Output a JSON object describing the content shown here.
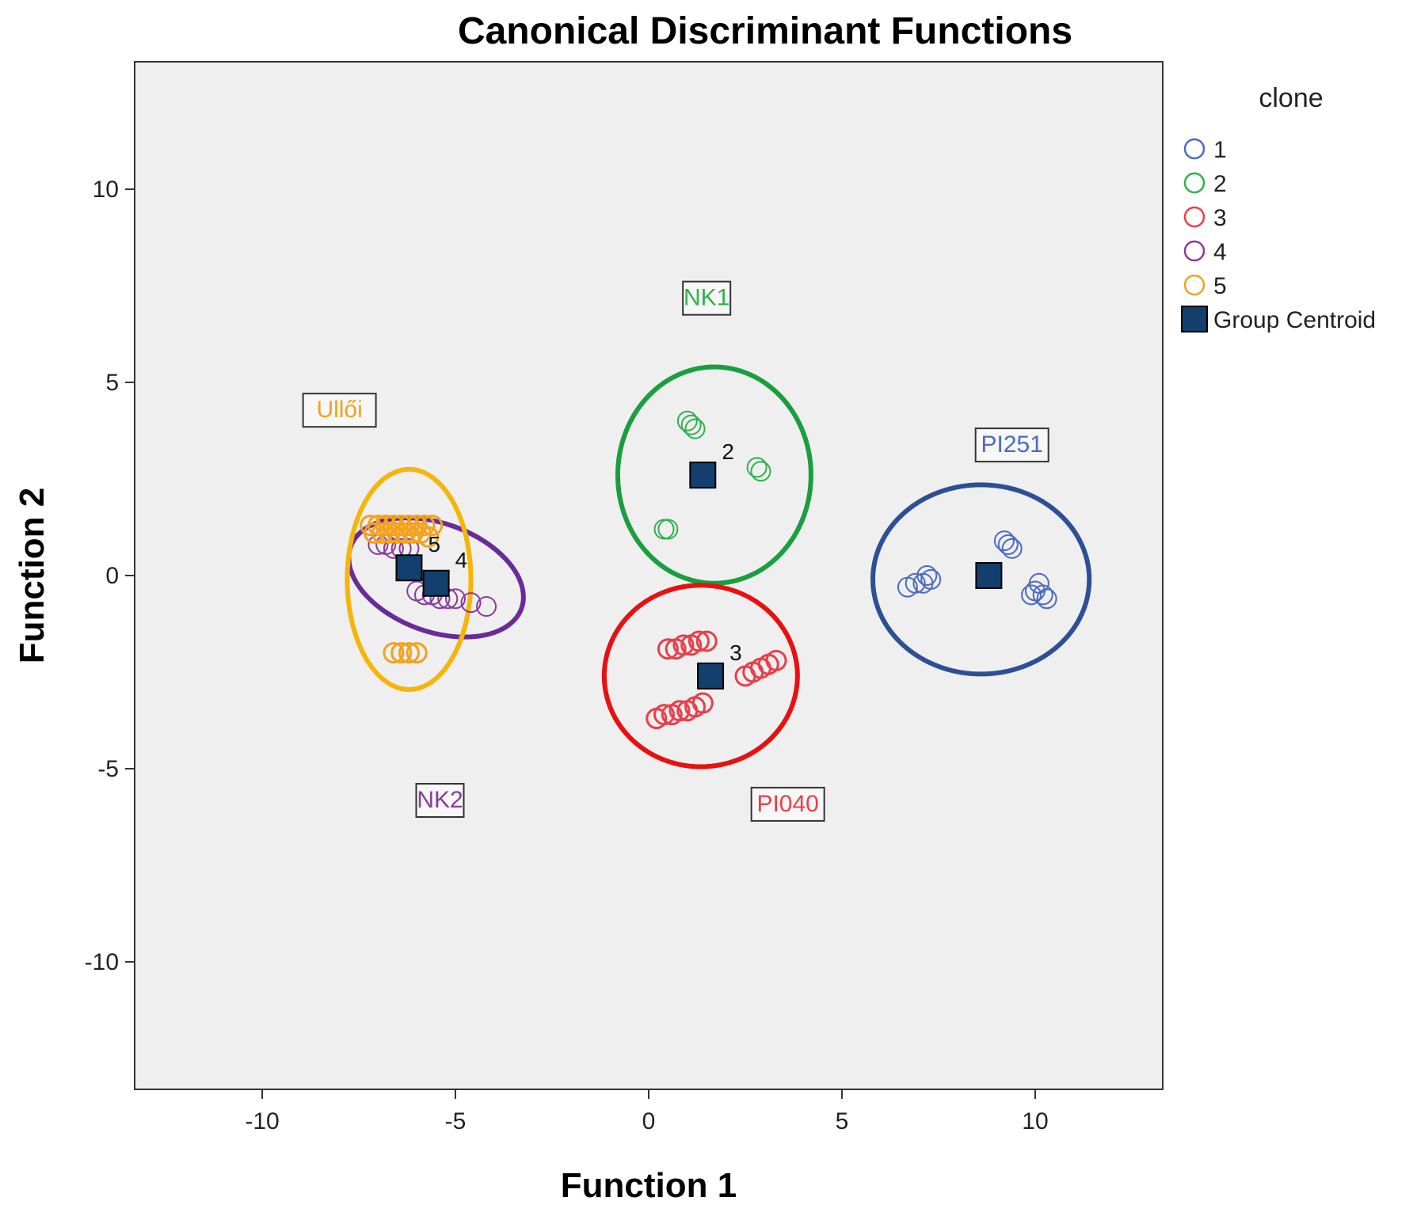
{
  "chart_data": {
    "type": "scatter",
    "title": "Canonical Discriminant Functions",
    "xlabel": "Function 1",
    "ylabel": "Function 2",
    "xlim": [
      -13.3,
      13.3
    ],
    "ylim": [
      -13.3,
      13.3
    ],
    "xticks": [
      -10,
      -5,
      0,
      5,
      10
    ],
    "yticks": [
      10,
      5,
      0,
      -5,
      -10
    ],
    "xtick_labels": [
      "-10",
      "-5",
      "0",
      "5",
      "10"
    ],
    "ytick_labels": [
      "10",
      "5",
      "0",
      "-5",
      "-10"
    ],
    "grid": false,
    "legend": {
      "title": "clone",
      "placement": "right",
      "entries": [
        {
          "label": "1",
          "color": "#4a6cc0",
          "marker": "circle"
        },
        {
          "label": "2",
          "color": "#2db34a",
          "marker": "circle"
        },
        {
          "label": "3",
          "color": "#e8404a",
          "marker": "circle"
        },
        {
          "label": "4",
          "color": "#8a3a9e",
          "marker": "circle"
        },
        {
          "label": "5",
          "color": "#f2a21e",
          "marker": "circle"
        },
        {
          "label": "Group Centroid",
          "color": "#123f6e",
          "marker": "square"
        }
      ]
    },
    "series": [
      {
        "name": "1",
        "color": "#4a6cc0",
        "x": [
          6.7,
          6.9,
          7.1,
          7.3,
          7.2,
          9.2,
          9.3,
          9.4,
          9.9,
          10.0,
          10.1,
          10.2,
          10.3
        ],
        "y": [
          -0.3,
          -0.2,
          -0.2,
          -0.1,
          0.0,
          0.9,
          0.8,
          0.7,
          -0.5,
          -0.4,
          -0.2,
          -0.5,
          -0.6
        ]
      },
      {
        "name": "2",
        "color": "#2db34a",
        "x": [
          1.0,
          1.1,
          1.2,
          2.8,
          2.9,
          0.4,
          0.5
        ],
        "y": [
          4.0,
          3.9,
          3.8,
          2.8,
          2.7,
          1.2,
          1.2
        ]
      },
      {
        "name": "3",
        "color": "#e8404a",
        "x": [
          0.5,
          0.7,
          0.9,
          1.1,
          1.3,
          1.5,
          2.5,
          2.7,
          2.9,
          3.1,
          3.3,
          0.2,
          0.4,
          0.6,
          0.8,
          1.0,
          1.2,
          1.4
        ],
        "y": [
          -1.9,
          -1.9,
          -1.8,
          -1.8,
          -1.7,
          -1.7,
          -2.6,
          -2.5,
          -2.4,
          -2.3,
          -2.2,
          -3.7,
          -3.6,
          -3.6,
          -3.5,
          -3.5,
          -3.4,
          -3.3
        ],
        "line_width": 3
      },
      {
        "name": "4",
        "color": "#8a3a9e",
        "x": [
          -7.0,
          -6.8,
          -6.6,
          -6.4,
          -6.2,
          -6.0,
          -5.8,
          -5.6,
          -5.4,
          -5.2,
          -5.0,
          -4.6,
          -4.2
        ],
        "y": [
          0.8,
          0.8,
          0.7,
          0.7,
          0.7,
          -0.4,
          -0.5,
          -0.5,
          -0.6,
          -0.6,
          -0.6,
          -0.7,
          -0.8
        ]
      },
      {
        "name": "5",
        "color": "#f2a21e",
        "x": [
          -7.2,
          -7.0,
          -6.8,
          -6.6,
          -6.4,
          -6.2,
          -6.0,
          -5.8,
          -5.6,
          -7.1,
          -6.9,
          -6.7,
          -6.5,
          -6.3,
          -6.1,
          -5.9,
          -5.7,
          -6.6,
          -6.4,
          -6.2,
          -6.0
        ],
        "y": [
          1.3,
          1.3,
          1.3,
          1.3,
          1.3,
          1.3,
          1.3,
          1.3,
          1.3,
          1.1,
          1.1,
          1.1,
          1.1,
          1.1,
          1.1,
          1.1,
          1.0,
          -2.0,
          -2.0,
          -2.0,
          -2.0
        ],
        "line_width": 3
      }
    ],
    "centroids": [
      {
        "label": "",
        "x": 8.8,
        "y": 0.0
      },
      {
        "label": "2",
        "x": 1.4,
        "y": 2.6
      },
      {
        "label": "3",
        "x": 1.6,
        "y": -2.6
      },
      {
        "label": "4",
        "x": -5.5,
        "y": -0.2
      },
      {
        "label": "5",
        "x": -6.2,
        "y": 0.2
      }
    ],
    "annotations": [
      {
        "text": "NK1",
        "x": 1.5,
        "y": 7.2,
        "color": "#2db34a"
      },
      {
        "text": "Ullői",
        "x": -8.0,
        "y": 4.3,
        "color": "#f2a21e"
      },
      {
        "text": "PI251",
        "x": 9.4,
        "y": 3.4,
        "color": "#4a6cc0"
      },
      {
        "text": "NK2",
        "x": -5.4,
        "y": -5.8,
        "color": "#8a3a9e"
      },
      {
        "text": "PI040",
        "x": 3.6,
        "y": -5.9,
        "color": "#e8404a"
      }
    ],
    "ellipses": [
      {
        "name": "clone-1",
        "color": "#2d4f96",
        "cx": 8.6,
        "cy": -0.1,
        "rx": 2.8,
        "ry": 2.45,
        "rotate": 0
      },
      {
        "name": "clone-2",
        "color": "#1a9e3e",
        "cx": 1.7,
        "cy": 2.6,
        "rx": 2.5,
        "ry": 2.8,
        "rotate": 0
      },
      {
        "name": "clone-3",
        "color": "#e81010",
        "cx": 1.35,
        "cy": -2.6,
        "rx": 2.5,
        "ry": 2.35,
        "rotate": 0
      },
      {
        "name": "clone-4",
        "color": "#6a2a9a",
        "cx": -5.5,
        "cy": -0.05,
        "rx": 2.35,
        "ry": 1.4,
        "rotate": 20
      },
      {
        "name": "clone-5",
        "color": "#f5b50a",
        "cx": -6.2,
        "cy": -0.1,
        "rx": 1.6,
        "ry": 2.85,
        "rotate": 0
      }
    ]
  }
}
